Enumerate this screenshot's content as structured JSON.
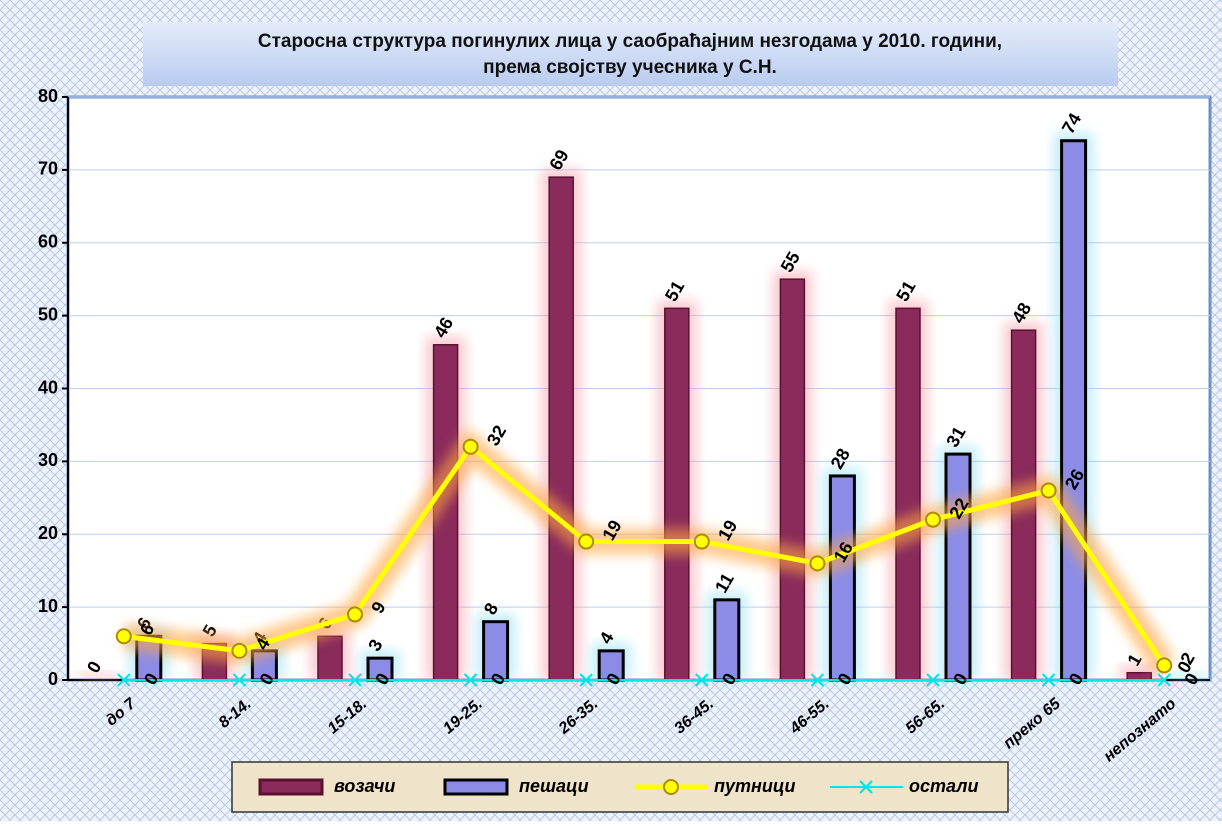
{
  "chart_data": {
    "type": "bar-line",
    "title": [
      "Старосна структура погинулих лица у саобраћајним незгодама у 2010. години,",
      "према својству учесника у С.Н."
    ],
    "categories": [
      "до 7",
      "8-14.",
      "15-18.",
      "19-25.",
      "26-35.",
      "36-45.",
      "46-55.",
      "56-65.",
      "преко 65",
      "непознато"
    ],
    "series": [
      {
        "name": "возачи",
        "kind": "bar",
        "color": "#8a2b5c",
        "values": [
          0,
          5,
          6,
          46,
          69,
          51,
          55,
          51,
          48,
          1
        ]
      },
      {
        "name": "пешаци",
        "kind": "bar",
        "color": "#8c8ce6",
        "values": [
          6,
          4,
          3,
          8,
          4,
          11,
          28,
          31,
          74,
          0
        ]
      },
      {
        "name": "путници",
        "kind": "line",
        "color": "#ffff00",
        "values": [
          6,
          4,
          9,
          32,
          19,
          19,
          16,
          22,
          26,
          2
        ]
      },
      {
        "name": "остали",
        "kind": "line",
        "color": "#00e5e5",
        "values": [
          0,
          0,
          0,
          0,
          0,
          0,
          0,
          0,
          0,
          0
        ]
      }
    ],
    "ylim": [
      0,
      80
    ],
    "yticks": [
      0,
      10,
      20,
      30,
      40,
      50,
      60,
      70,
      80
    ],
    "grid": true
  }
}
